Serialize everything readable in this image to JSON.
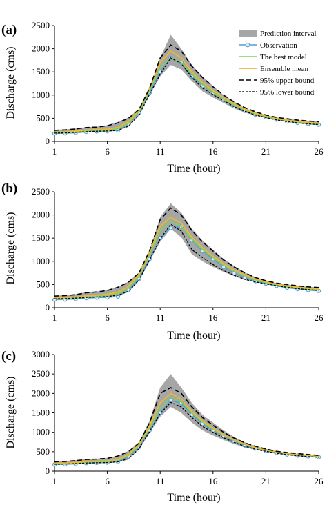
{
  "chart_data": [
    {
      "type": "line",
      "panel_label": "(a)",
      "xlabel": "Time (hour)",
      "ylabel": "Discharge (cms)",
      "xlim": [
        1,
        26
      ],
      "ylim": [
        0,
        2500
      ],
      "xticks": [
        1,
        6,
        11,
        16,
        21,
        26
      ],
      "yticks": [
        0,
        500,
        1000,
        1500,
        2000,
        2500
      ],
      "grid": false,
      "legend_position": "top-right",
      "legend": [
        "Prediction interval",
        "Observation",
        "The best model",
        "Ensemble mean",
        "95% upper bound",
        "95% lower bound"
      ],
      "x": [
        1,
        2,
        3,
        4,
        5,
        6,
        7,
        8,
        9,
        10,
        11,
        12,
        13,
        14,
        15,
        16,
        17,
        18,
        19,
        20,
        21,
        22,
        23,
        24,
        25,
        26
      ],
      "band": {
        "name": "Prediction interval",
        "upper": [
          250,
          260,
          280,
          310,
          320,
          350,
          420,
          520,
          700,
          1150,
          1800,
          2300,
          2000,
          1650,
          1400,
          1200,
          1000,
          860,
          720,
          640,
          570,
          520,
          490,
          460,
          440,
          430
        ],
        "lower": [
          170,
          175,
          185,
          200,
          210,
          215,
          235,
          320,
          560,
          1000,
          1400,
          1650,
          1550,
          1300,
          1080,
          950,
          830,
          710,
          620,
          560,
          510,
          460,
          430,
          400,
          380,
          360
        ]
      },
      "series": [
        {
          "name": "Observation",
          "values": [
            170,
            175,
            185,
            205,
            215,
            220,
            240,
            380,
            620,
            1050,
            1500,
            1800,
            1700,
            1400,
            1200,
            1050,
            900,
            760,
            660,
            580,
            520,
            470,
            430,
            400,
            380,
            360
          ]
        },
        {
          "name": "The best model",
          "values": [
            180,
            185,
            195,
            215,
            225,
            235,
            270,
            390,
            640,
            1100,
            1580,
            1800,
            1700,
            1450,
            1220,
            1060,
            910,
            780,
            680,
            590,
            530,
            480,
            440,
            410,
            390,
            370
          ]
        },
        {
          "name": "Ensemble mean",
          "values": [
            200,
            205,
            220,
            245,
            255,
            265,
            300,
            430,
            680,
            1150,
            1700,
            1950,
            1800,
            1500,
            1270,
            1100,
            950,
            810,
            700,
            610,
            550,
            500,
            460,
            430,
            410,
            395
          ]
        },
        {
          "name": "95% upper bound",
          "values": [
            240,
            250,
            270,
            300,
            310,
            340,
            400,
            500,
            690,
            1150,
            1800,
            2080,
            1950,
            1620,
            1380,
            1180,
            1000,
            850,
            730,
            640,
            570,
            520,
            490,
            460,
            440,
            425
          ]
        },
        {
          "name": "95% lower bound",
          "values": [
            180,
            185,
            195,
            210,
            220,
            225,
            240,
            330,
            570,
            1020,
            1450,
            1800,
            1680,
            1380,
            1150,
            1010,
            880,
            750,
            650,
            570,
            515,
            465,
            430,
            400,
            380,
            365
          ]
        }
      ]
    },
    {
      "type": "line",
      "panel_label": "(b)",
      "xlabel": "Time (hour)",
      "ylabel": "Discharge (cms)",
      "xlim": [
        1,
        26
      ],
      "ylim": [
        0,
        2500
      ],
      "xticks": [
        1,
        6,
        11,
        16,
        21,
        26
      ],
      "yticks": [
        0,
        500,
        1000,
        1500,
        2000,
        2500
      ],
      "grid": false,
      "x": [
        1,
        2,
        3,
        4,
        5,
        6,
        7,
        8,
        9,
        10,
        11,
        12,
        13,
        14,
        15,
        16,
        17,
        18,
        19,
        20,
        21,
        22,
        23,
        24,
        25,
        26
      ],
      "band": {
        "name": "Prediction interval",
        "upper": [
          260,
          270,
          290,
          330,
          350,
          380,
          450,
          560,
          760,
          1250,
          1950,
          2250,
          2050,
          1700,
          1450,
          1250,
          1050,
          900,
          760,
          660,
          590,
          530,
          500,
          470,
          450,
          440
        ],
        "lower": [
          180,
          185,
          195,
          210,
          220,
          230,
          260,
          340,
          580,
          1000,
          1420,
          1700,
          1520,
          1150,
          1000,
          880,
          770,
          680,
          600,
          550,
          510,
          470,
          430,
          400,
          380,
          360
        ]
      },
      "series": [
        {
          "name": "Observation",
          "values": [
            170,
            175,
            185,
            205,
            215,
            220,
            240,
            380,
            620,
            1050,
            1500,
            1720,
            1750,
            1450,
            1220,
            1050,
            880,
            740,
            650,
            570,
            520,
            470,
            430,
            400,
            380,
            360
          ]
        },
        {
          "name": "The best model",
          "values": [
            190,
            195,
            210,
            230,
            245,
            260,
            300,
            420,
            680,
            1150,
            1650,
            1860,
            1750,
            1470,
            1250,
            1080,
            920,
            790,
            690,
            600,
            540,
            490,
            450,
            420,
            400,
            385
          ]
        },
        {
          "name": "Ensemble mean",
          "values": [
            210,
            215,
            230,
            255,
            270,
            290,
            330,
            460,
            720,
            1200,
            1750,
            1950,
            1820,
            1520,
            1290,
            1110,
            950,
            810,
            710,
            620,
            560,
            510,
            470,
            440,
            420,
            405
          ]
        },
        {
          "name": "95% upper bound",
          "values": [
            250,
            260,
            280,
            320,
            340,
            370,
            440,
            550,
            750,
            1230,
            1900,
            2150,
            2000,
            1660,
            1420,
            1220,
            1030,
            880,
            750,
            650,
            580,
            530,
            500,
            470,
            450,
            435
          ]
        },
        {
          "name": "95% lower bound",
          "values": [
            190,
            195,
            205,
            220,
            230,
            240,
            270,
            350,
            600,
            1030,
            1480,
            1800,
            1650,
            1250,
            1080,
            930,
            800,
            700,
            610,
            555,
            515,
            475,
            440,
            410,
            390,
            370
          ]
        }
      ]
    },
    {
      "type": "line",
      "panel_label": "(c)",
      "xlabel": "Time (hour)",
      "ylabel": "Discharge (cms)",
      "xlim": [
        1,
        26
      ],
      "ylim": [
        0,
        3000
      ],
      "xticks": [
        1,
        6,
        11,
        16,
        21,
        26
      ],
      "yticks": [
        0,
        500,
        1000,
        1500,
        2000,
        2500,
        3000
      ],
      "grid": false,
      "x": [
        1,
        2,
        3,
        4,
        5,
        6,
        7,
        8,
        9,
        10,
        11,
        12,
        13,
        14,
        15,
        16,
        17,
        18,
        19,
        20,
        21,
        22,
        23,
        24,
        25,
        26
      ],
      "band": {
        "name": "Prediction interval",
        "upper": [
          250,
          260,
          280,
          310,
          320,
          340,
          400,
          520,
          750,
          1300,
          2150,
          2500,
          2150,
          1750,
          1450,
          1250,
          1050,
          880,
          740,
          650,
          570,
          510,
          470,
          440,
          420,
          400
        ],
        "lower": [
          170,
          175,
          185,
          200,
          205,
          210,
          230,
          300,
          560,
          980,
          1400,
          1650,
          1500,
          1250,
          1050,
          920,
          800,
          700,
          610,
          550,
          500,
          450,
          420,
          390,
          370,
          350
        ]
      },
      "series": [
        {
          "name": "Observation",
          "values": [
            170,
            175,
            185,
            205,
            215,
            220,
            240,
            380,
            620,
            1050,
            1500,
            1820,
            1750,
            1450,
            1220,
            1050,
            900,
            760,
            660,
            580,
            520,
            470,
            430,
            400,
            380,
            360
          ]
        },
        {
          "name": "The best model",
          "values": [
            180,
            185,
            200,
            220,
            230,
            240,
            280,
            400,
            660,
            1120,
            1620,
            1900,
            1780,
            1490,
            1260,
            1080,
            920,
            790,
            690,
            600,
            540,
            490,
            450,
            420,
            400,
            380
          ]
        },
        {
          "name": "Ensemble mean",
          "values": [
            200,
            205,
            220,
            245,
            255,
            265,
            300,
            430,
            690,
            1170,
            1750,
            2000,
            1850,
            1530,
            1290,
            1100,
            940,
            800,
            700,
            610,
            550,
            500,
            460,
            430,
            410,
            390
          ]
        },
        {
          "name": "95% upper bound",
          "values": [
            240,
            250,
            270,
            300,
            310,
            330,
            390,
            500,
            720,
            1250,
            2000,
            2150,
            2000,
            1650,
            1380,
            1180,
            1000,
            850,
            730,
            640,
            570,
            510,
            480,
            450,
            430,
            405
          ]
        },
        {
          "name": "95% lower bound",
          "values": [
            180,
            185,
            195,
            210,
            215,
            220,
            240,
            320,
            580,
            1020,
            1480,
            1770,
            1650,
            1380,
            1150,
            1000,
            860,
            740,
            640,
            565,
            510,
            460,
            425,
            395,
            375,
            355
          ]
        }
      ]
    }
  ],
  "styles": {
    "band_color": "#a6a6a6",
    "observation_color": "#4f9fd6",
    "best_model_color": "#7fd160",
    "ensemble_color": "#f0b92b",
    "bound_color": "#000000"
  }
}
